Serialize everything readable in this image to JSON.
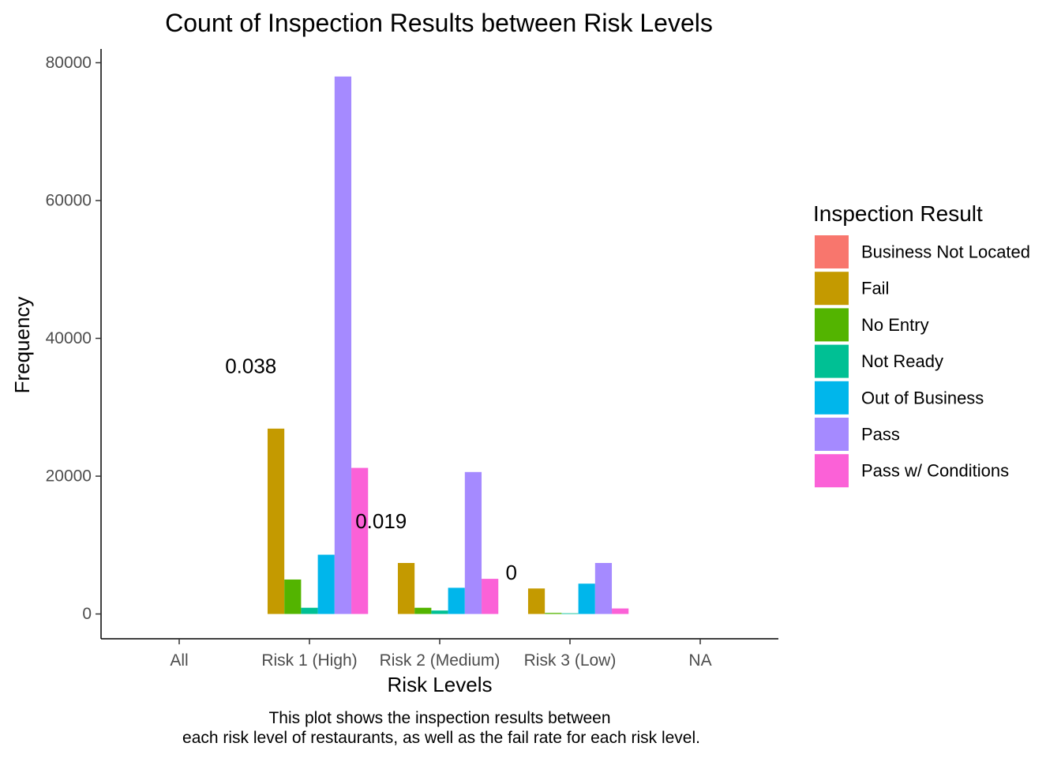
{
  "chart_data": {
    "type": "bar",
    "title": "Count of Inspection Results between Risk Levels",
    "xlabel": "Risk Levels",
    "ylabel": "Frequency",
    "ylim": [
      -3600,
      82000
    ],
    "yticks": [
      0,
      20000,
      40000,
      60000,
      80000
    ],
    "categories": [
      "All",
      "Risk 1 (High)",
      "Risk 2 (Medium)",
      "Risk 3 (Low)",
      "NA"
    ],
    "grid": false,
    "legend": {
      "title": "Inspection Result",
      "placement": "right"
    },
    "series": [
      {
        "name": "Business Not Located",
        "color": "#F8766D",
        "values": [
          0,
          0,
          0,
          0,
          0
        ]
      },
      {
        "name": "Fail",
        "color": "#C49A00",
        "values": [
          0,
          26900,
          7400,
          3700,
          0
        ]
      },
      {
        "name": "No Entry",
        "color": "#53B400",
        "values": [
          0,
          5000,
          900,
          150,
          0
        ]
      },
      {
        "name": "Not Ready",
        "color": "#00C094",
        "values": [
          0,
          900,
          500,
          100,
          0
        ]
      },
      {
        "name": "Out of Business",
        "color": "#00B6EB",
        "values": [
          0,
          8600,
          3800,
          4400,
          0
        ]
      },
      {
        "name": "Pass",
        "color": "#A58AFF",
        "values": [
          0,
          78000,
          20600,
          7400,
          0
        ]
      },
      {
        "name": "Pass w/ Conditions",
        "color": "#FB61D7",
        "values": [
          0,
          21200,
          5100,
          800,
          0
        ]
      }
    ],
    "annotations": [
      {
        "category": "Risk 1 (High)",
        "text": "0.038",
        "y": 36000
      },
      {
        "category": "Risk 2 (Medium)",
        "text": "0.019",
        "y": 13500
      },
      {
        "category": "Risk 3 (Low)",
        "text": "0",
        "y": 6000
      }
    ],
    "caption_lines": [
      "This plot shows the inspection results between",
      "each risk level of restaurants, as well as the fail rate for each risk level."
    ]
  }
}
